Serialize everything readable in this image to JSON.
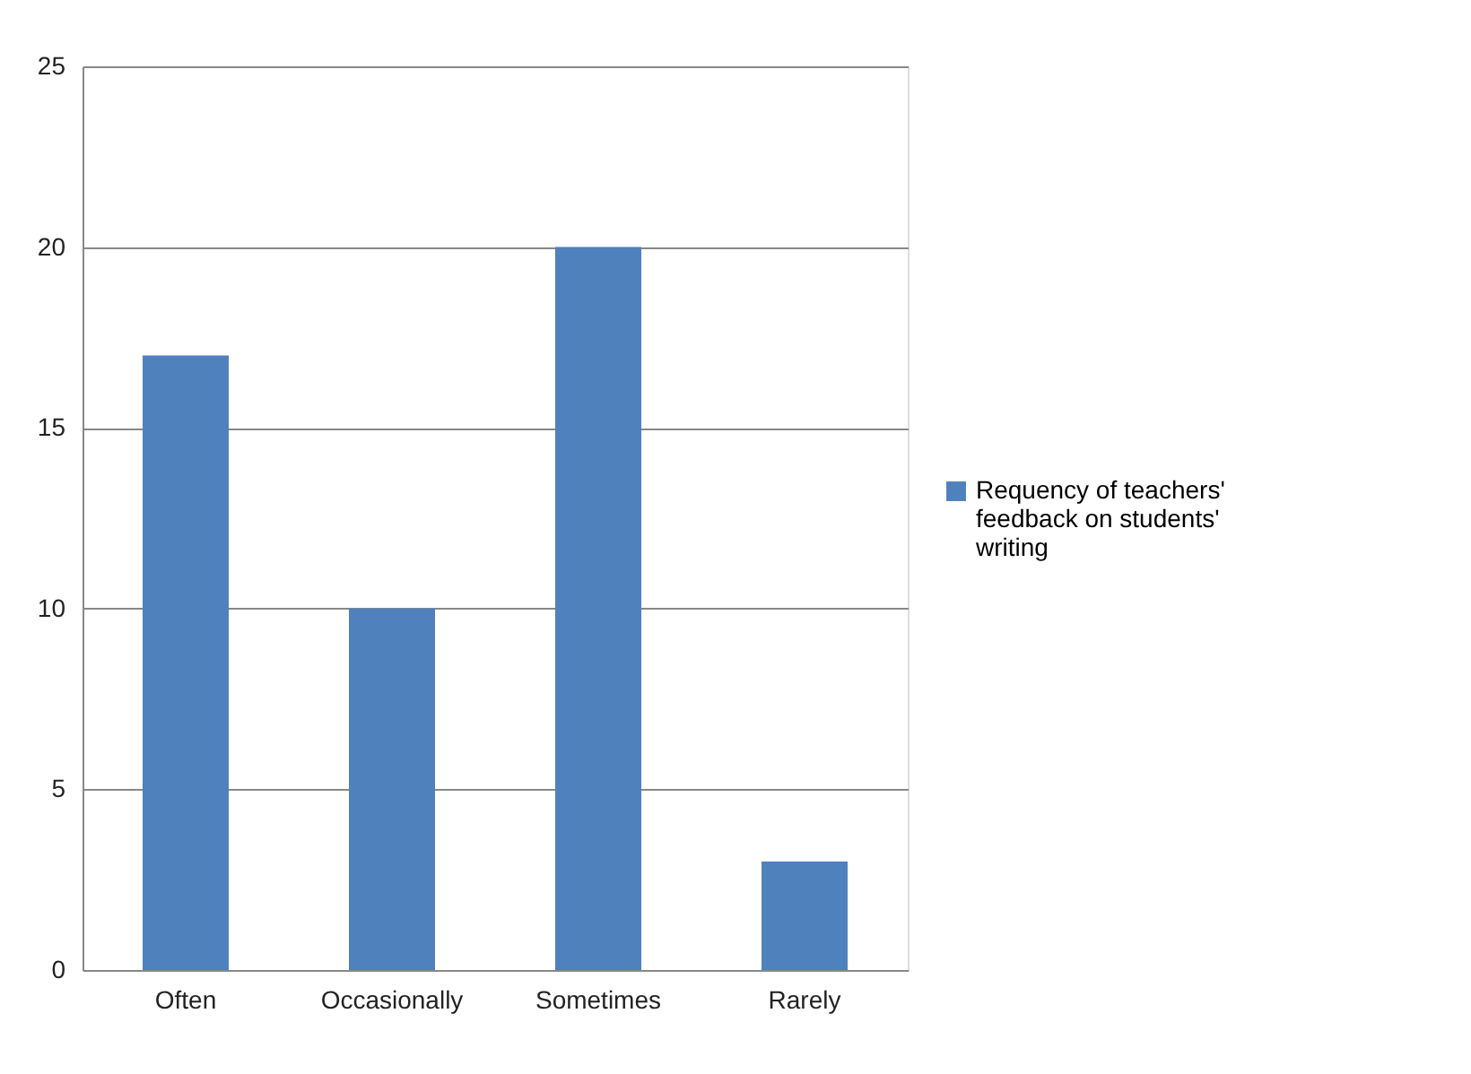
{
  "chart_data": {
    "type": "bar",
    "categories": [
      "Often",
      "Occasionally",
      "Sometimes",
      "Rarely"
    ],
    "series": [
      {
        "name": "Requency of teachers' feedback on students' writing",
        "color": "#4f81bd",
        "values": [
          17,
          10,
          20,
          3
        ]
      }
    ],
    "ylim": [
      0,
      25
    ],
    "yticks": [
      0,
      5,
      10,
      15,
      20,
      25
    ],
    "grid": "y",
    "legend": "right"
  }
}
